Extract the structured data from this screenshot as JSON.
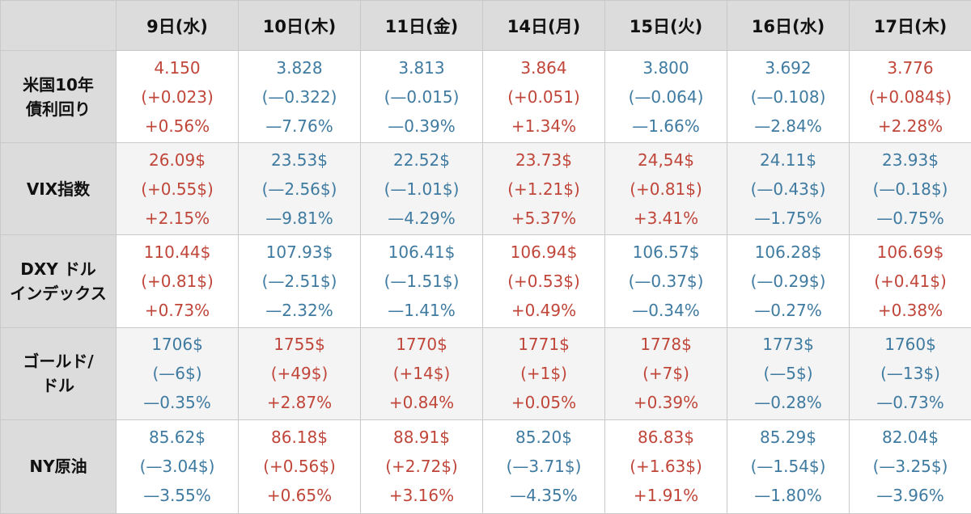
{
  "colors": {
    "up": "#c0463a",
    "down": "#3f7aa0",
    "header_bg": "#dcdcdc"
  },
  "headers": [
    "9日(水)",
    "10日(木)",
    "11日(金)",
    "14日(月)",
    "15日(火)",
    "16日(水)",
    "17日(木)"
  ],
  "rows": [
    {
      "label_lines": [
        "米国10年",
        "債利回り"
      ],
      "cells": [
        {
          "dir": "up",
          "value": "4.150",
          "change": "(+0.023)",
          "pct": "+0.56%"
        },
        {
          "dir": "down",
          "value": "3.828",
          "change": "(—0.322)",
          "pct": "—7.76%"
        },
        {
          "dir": "down",
          "value": "3.813",
          "change": "(—0.015)",
          "pct": "—0.39%"
        },
        {
          "dir": "up",
          "value": "3.864",
          "change": "(+0.051)",
          "pct": "+1.34%"
        },
        {
          "dir": "down",
          "value": "3.800",
          "change": "(—0.064)",
          "pct": "—1.66%"
        },
        {
          "dir": "down",
          "value": "3.692",
          "change": "(—0.108)",
          "pct": "—2.84%"
        },
        {
          "dir": "up",
          "value": "3.776",
          "change": "(+0.084$)",
          "pct": "+2.28%"
        }
      ]
    },
    {
      "label_lines": [
        "VIX指数"
      ],
      "cells": [
        {
          "dir": "up",
          "value": "26.09$",
          "change": "(+0.55$)",
          "pct": "+2.15%"
        },
        {
          "dir": "down",
          "value": "23.53$",
          "change": "(—2.56$)",
          "pct": "—9.81%"
        },
        {
          "dir": "down",
          "value": "22.52$",
          "change": "(—1.01$)",
          "pct": "—4.29%"
        },
        {
          "dir": "up",
          "value": "23.73$",
          "change": "(+1.21$)",
          "pct": "+5.37%"
        },
        {
          "dir": "up",
          "value": "24,54$",
          "change": "(+0.81$)",
          "pct": "+3.41%"
        },
        {
          "dir": "down",
          "value": "24.11$",
          "change": "(—0.43$)",
          "pct": "—1.75%"
        },
        {
          "dir": "down",
          "value": "23.93$",
          "change": "(—0.18$)",
          "pct": "—0.75%"
        }
      ]
    },
    {
      "label_lines": [
        "DXY ドル",
        "インデックス"
      ],
      "cells": [
        {
          "dir": "up",
          "value": "110.44$",
          "change": "(+0.81$)",
          "pct": "+0.73%"
        },
        {
          "dir": "down",
          "value": "107.93$",
          "change": "(—2.51$)",
          "pct": "—2.32%"
        },
        {
          "dir": "down",
          "value": "106.41$",
          "change": "(—1.51$)",
          "pct": "—1.41%"
        },
        {
          "dir": "up",
          "value": "106.94$",
          "change": "(+0.53$)",
          "pct": "+0.49%"
        },
        {
          "dir": "down",
          "value": "106.57$",
          "change": "(—0.37$)",
          "pct": "—0.34%"
        },
        {
          "dir": "down",
          "value": "106.28$",
          "change": "(—0.29$)",
          "pct": "—0.27%"
        },
        {
          "dir": "up",
          "value": "106.69$",
          "change": "(+0.41$)",
          "pct": "+0.38%"
        }
      ]
    },
    {
      "label_lines": [
        "ゴールド/",
        "ドル"
      ],
      "cells": [
        {
          "dir": "down",
          "value": "1706$",
          "change": "(—6$)",
          "pct": "—0.35%"
        },
        {
          "dir": "up",
          "value": "1755$",
          "change": "(+49$)",
          "pct": "+2.87%"
        },
        {
          "dir": "up",
          "value": "1770$",
          "change": "(+14$)",
          "pct": "+0.84%"
        },
        {
          "dir": "up",
          "value": "1771$",
          "change": "(+1$)",
          "pct": "+0.05%"
        },
        {
          "dir": "up",
          "value": "1778$",
          "change": "(+7$)",
          "pct": "+0.39%"
        },
        {
          "dir": "down",
          "value": "1773$",
          "change": "(—5$)",
          "pct": "—0.28%"
        },
        {
          "dir": "down",
          "value": "1760$",
          "change": "(—13$)",
          "pct": "—0.73%"
        }
      ]
    },
    {
      "label_lines": [
        "NY原油"
      ],
      "cells": [
        {
          "dir": "down",
          "value": "85.62$",
          "change": "(—3.04$)",
          "pct": "—3.55%"
        },
        {
          "dir": "up",
          "value": "86.18$",
          "change": "(+0.56$)",
          "pct": "+0.65%"
        },
        {
          "dir": "up",
          "value": "88.91$",
          "change": "(+2.72$)",
          "pct": "+3.16%"
        },
        {
          "dir": "down",
          "value": "85.20$",
          "change": "(—3.71$)",
          "pct": "—4.35%"
        },
        {
          "dir": "up",
          "value": "86.83$",
          "change": "(+1.63$)",
          "pct": "+1.91%"
        },
        {
          "dir": "down",
          "value": "85.29$",
          "change": "(—1.54$)",
          "pct": "—1.80%"
        },
        {
          "dir": "down",
          "value": "82.04$",
          "change": "(—3.25$)",
          "pct": "—3.96%"
        }
      ]
    }
  ]
}
